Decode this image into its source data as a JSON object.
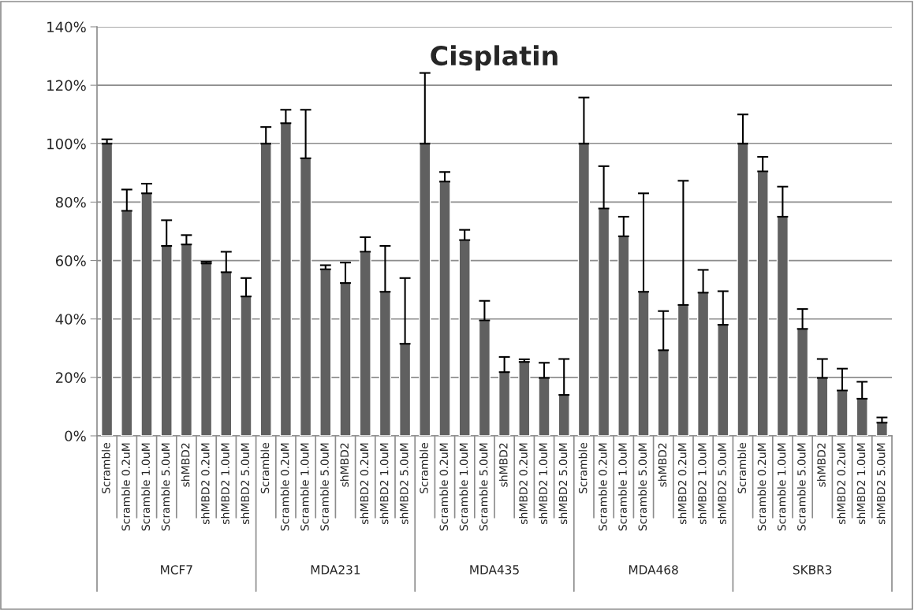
{
  "chart_data": {
    "type": "bar",
    "title": "Cisplatin",
    "categories": [
      "Scramble",
      "Scramble 0.2uM",
      "Scramble 1.0uM",
      "Scramble 5.0uM",
      "shMBD2",
      "shMBD2 0.2uM",
      "shMBD2 1.0uM",
      "shMBD2 5.0uM",
      "Scramble",
      "Scramble 0.2uM",
      "Scramble 1.0uM",
      "Scramble 5.0uM",
      "shMBD2",
      "shMBD2 0.2uM",
      "shMBD2 1.0uM",
      "shMBD2 5.0uM",
      "Scramble",
      "Scramble 0.2uM",
      "Scramble 1.0uM",
      "Scramble 5.0uM",
      "shMBD2",
      "shMBD2 0.2uM",
      "shMBD2 1.0uM",
      "shMBD2 5.0uM",
      "Scramble",
      "Scramble 0.2uM",
      "Scramble 1.0uM",
      "Scramble 5.0uM",
      "shMBD2",
      "shMBD2 0.2uM",
      "shMBD2 1.0uM",
      "shMBD2 5.0uM",
      "Scramble",
      "Scramble 0.2uM",
      "Scramble 1.0uM",
      "Scramble 5.0uM",
      "shMBD2",
      "shMBD2 0.2uM",
      "shMBD2 1.0uM",
      "shMBD2 5.0uM"
    ],
    "values": [
      100,
      77,
      83,
      65,
      65.5,
      59,
      56,
      47.7,
      100,
      107,
      95,
      57,
      52.3,
      63,
      49.3,
      31.5,
      100,
      87,
      67,
      39.5,
      21.8,
      25.3,
      19.8,
      14,
      100,
      77.8,
      68.3,
      49.3,
      29.3,
      44.8,
      49,
      38,
      100,
      90.5,
      75,
      36.6,
      19.8,
      15.5,
      12.7,
      4.5
    ],
    "errors": [
      [
        100,
        101.5
      ],
      [
        77,
        84.3
      ],
      [
        83,
        86.3
      ],
      [
        65,
        73.8
      ],
      [
        65.5,
        68.7
      ],
      [
        59,
        59.6
      ],
      [
        56,
        63
      ],
      [
        47.7,
        54
      ],
      [
        100,
        105.7
      ],
      [
        107,
        111.6
      ],
      [
        95,
        111.6
      ],
      [
        57,
        58.4
      ],
      [
        52.3,
        59.3
      ],
      [
        63,
        68
      ],
      [
        49.3,
        65
      ],
      [
        31.5,
        54
      ],
      [
        100,
        124.2
      ],
      [
        87,
        90.3
      ],
      [
        67,
        70.5
      ],
      [
        39.5,
        46.2
      ],
      [
        21.8,
        27
      ],
      [
        25.3,
        26.2
      ],
      [
        19.8,
        25
      ],
      [
        14,
        26.3
      ],
      [
        100,
        115.8
      ],
      [
        77.8,
        92.3
      ],
      [
        68.3,
        75
      ],
      [
        49.3,
        83
      ],
      [
        29.3,
        42.7
      ],
      [
        44.8,
        87.3
      ],
      [
        49,
        56.8
      ],
      [
        38,
        49.5
      ],
      [
        100,
        110
      ],
      [
        90.5,
        95.5
      ],
      [
        75,
        85.3
      ],
      [
        36.6,
        43.4
      ],
      [
        19.8,
        26.3
      ],
      [
        15.5,
        23
      ],
      [
        12.7,
        18.5
      ],
      [
        4.5,
        6.3
      ]
    ],
    "color": "#606060",
    "annotations": [
      "MCF7",
      "MDA231",
      "MDA435",
      "MDA468",
      "SKBR3"
    ],
    "ylim": [
      0,
      140
    ],
    "yticks": [
      {
        "value": 0,
        "label": "0%"
      },
      {
        "value": 20,
        "label": "20%"
      },
      {
        "value": 40,
        "label": "40%"
      },
      {
        "value": 60,
        "label": "60%"
      },
      {
        "value": 80,
        "label": "80%"
      },
      {
        "value": 100,
        "label": "100%"
      },
      {
        "value": 120,
        "label": "120%"
      },
      {
        "value": 140,
        "label": "140%"
      }
    ],
    "grid": "y"
  }
}
